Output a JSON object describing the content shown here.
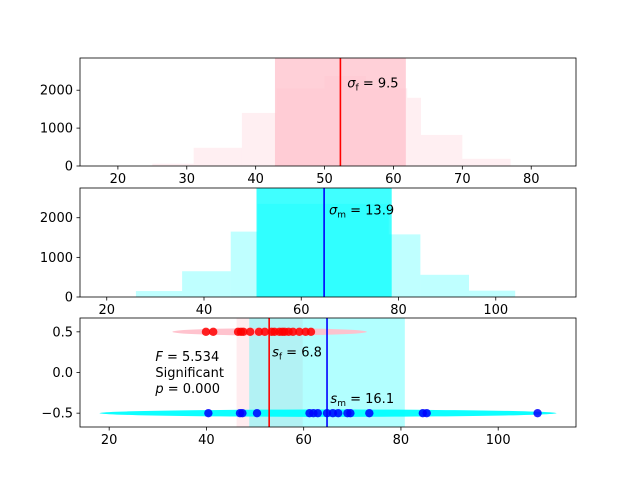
{
  "chart_data": [
    {
      "type": "bar",
      "title": "",
      "xlim": [
        14.5,
        86.5
      ],
      "ylim": [
        0,
        2850
      ],
      "xticks": [
        20,
        30,
        40,
        50,
        60,
        70,
        80
      ],
      "yticks": [
        0,
        1000,
        2000
      ],
      "histogram": {
        "color": "#ffc0cb",
        "bins": [
          {
            "x0": 25.0,
            "x1": 31.0,
            "count": 60
          },
          {
            "x0": 31.0,
            "x1": 38.0,
            "count": 480
          },
          {
            "x0": 38.0,
            "x1": 43.0,
            "count": 1400
          },
          {
            "x0": 43.0,
            "x1": 50.0,
            "count": 2050
          },
          {
            "x0": 50.0,
            "x1": 56.0,
            "count": 2380
          },
          {
            "x0": 56.0,
            "x1": 62.0,
            "count": 2050
          },
          {
            "x0": 62.0,
            "x1": 64.0,
            "count": 1800
          },
          {
            "x0": 64.0,
            "x1": 70.0,
            "count": 820
          },
          {
            "x0": 70.0,
            "x1": 77.0,
            "count": 190
          }
        ]
      },
      "spread_band": {
        "x0": 42.8,
        "x1": 61.8,
        "color": "#ffc0cb"
      },
      "mean_line": {
        "x": 52.3,
        "color": "#ff0000"
      },
      "annotation": {
        "base": "σ",
        "sub": "f",
        "text": " = 9.5",
        "x": 53.3,
        "y": 2050
      }
    },
    {
      "type": "bar",
      "title": "",
      "xlim": [
        14.5,
        116.5
      ],
      "ylim": [
        0,
        2750
      ],
      "xticks": [
        20,
        40,
        60,
        80,
        100
      ],
      "yticks": [
        0,
        1000,
        2000
      ],
      "histogram": {
        "color": "#00ffff",
        "bins": [
          {
            "x0": 26.0,
            "x1": 35.5,
            "count": 150
          },
          {
            "x0": 35.5,
            "x1": 45.5,
            "count": 650
          },
          {
            "x0": 45.5,
            "x1": 51.0,
            "count": 1650
          },
          {
            "x0": 51.0,
            "x1": 65.0,
            "count": 2350
          },
          {
            "x0": 65.0,
            "x1": 78.0,
            "count": 2350
          },
          {
            "x0": 78.0,
            "x1": 84.5,
            "count": 1580
          },
          {
            "x0": 84.5,
            "x1": 94.5,
            "count": 560
          },
          {
            "x0": 94.5,
            "x1": 104.0,
            "count": 160
          }
        ]
      },
      "spread_band": {
        "x0": 50.8,
        "x1": 78.6,
        "color": "#00ffff"
      },
      "mean_line": {
        "x": 64.7,
        "color": "#0000ff"
      },
      "annotation": {
        "base": "σ",
        "sub": "m",
        "text": " = 13.9",
        "x": 65.7,
        "y": 2050
      }
    },
    {
      "type": "scatter",
      "title": "",
      "xlim": [
        14.0,
        116.0
      ],
      "ylim": [
        -0.67,
        0.67
      ],
      "xticks": [
        20,
        40,
        60,
        80,
        100
      ],
      "yticks": [
        0.5,
        0.0,
        -0.5
      ],
      "ytick_labels": [
        "0.5",
        "0.0",
        "−0.5"
      ],
      "band_f": {
        "x0": 46.2,
        "x1": 59.8,
        "color": "#ffc0cb"
      },
      "band_m": {
        "x0": 48.8,
        "x1": 80.8,
        "color": "#00ffff"
      },
      "ellipse_f": {
        "cx": 53.0,
        "cy": 0.5,
        "rx": 20.0,
        "ry": 0.045,
        "color": "#ffc0cb"
      },
      "ellipse_m": {
        "cx": 65.0,
        "cy": -0.5,
        "rx": 47.0,
        "ry": 0.045,
        "color": "#00ffff"
      },
      "series": [
        {
          "color": "#ff0000",
          "y": 0.5,
          "x": [
            39.9,
            41.4,
            46.5,
            47.1,
            47.6,
            49.0,
            50.8,
            52.0,
            53.4,
            54.0,
            55.0,
            55.6,
            56.1,
            56.9,
            57.8,
            59.1,
            60.4,
            61.5
          ]
        },
        {
          "color": "#0000ff",
          "y": -0.5,
          "x": [
            40.4,
            46.9,
            47.4,
            50.4,
            61.2,
            62.0,
            62.9,
            64.8,
            66.0,
            67.1,
            69.0,
            69.6,
            73.5,
            84.5,
            85.3,
            108.1
          ]
        }
      ],
      "mean_line_f": {
        "x": 52.9,
        "color": "#ff0000"
      },
      "mean_line_m": {
        "x": 64.8,
        "color": "#0000ff"
      },
      "label_f": {
        "base": "s",
        "sub": "f",
        "text": " = 6.8",
        "x": 53.5,
        "y": 0.27
      },
      "label_m": {
        "base": "s",
        "sub": "m",
        "text": " = 16.1",
        "x": 65.5,
        "y": -0.3
      },
      "stats": {
        "f_symbol": "F",
        "f_text": " = 5.534",
        "significance": "Significant",
        "p_symbol": "p",
        "p_text": " = 0.000",
        "x": 29.5,
        "y": 0.2
      }
    }
  ]
}
